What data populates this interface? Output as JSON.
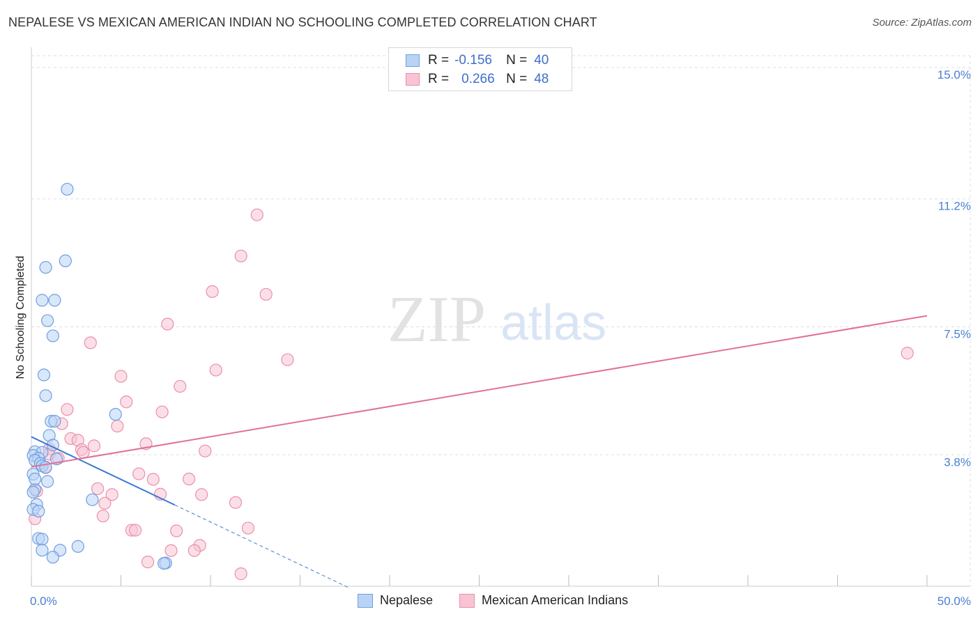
{
  "header": {
    "title": "NEPALESE VS MEXICAN AMERICAN INDIAN NO SCHOOLING COMPLETED CORRELATION CHART",
    "source": "Source: ZipAtlas.com"
  },
  "legend": {
    "r_label": "R =",
    "n_label": "N =",
    "rows": [
      {
        "r": "-0.156",
        "n": "40"
      },
      {
        "r": "0.266",
        "n": "48"
      }
    ]
  },
  "watermark": {
    "zip": "ZIP",
    "atlas": "atlas"
  },
  "colors": {
    "nepalese_fill": "#b9d3f5",
    "nepalese_stroke": "#6f9fe0",
    "nepalese_line": "#3a78d4",
    "mexican_fill": "#f8c4d3",
    "mexican_stroke": "#ea8fab",
    "mexican_line": "#e0709a",
    "tick": "#4a7fd1",
    "grid": "#dddddd"
  },
  "chart_data": {
    "type": "scatter",
    "title": "NEPALESE VS MEXICAN AMERICAN INDIAN NO SCHOOLING COMPLETED CORRELATION CHART",
    "xlabel": "",
    "ylabel": "No Schooling Completed",
    "xlim": [
      0,
      50
    ],
    "ylim": [
      0,
      15
    ],
    "x_tick_labels": [
      "0.0%",
      "50.0%"
    ],
    "y_ticks": [
      {
        "value": 3.8,
        "label": "3.8%"
      },
      {
        "value": 7.5,
        "label": "7.5%"
      },
      {
        "value": 11.2,
        "label": "11.2%"
      },
      {
        "value": 15.0,
        "label": "15.0%"
      }
    ],
    "grid": true,
    "legend_position": "bottom",
    "series": [
      {
        "name": "Nepalese",
        "r": -0.156,
        "n": 40,
        "trend": {
          "x0": 0,
          "y0": 4.32,
          "x1": 8,
          "y1": 2.35,
          "dashed_to_x": 17.7
        },
        "points": [
          {
            "x": 2.0,
            "y": 11.48
          },
          {
            "x": 1.9,
            "y": 9.41
          },
          {
            "x": 0.8,
            "y": 9.22
          },
          {
            "x": 0.6,
            "y": 8.27
          },
          {
            "x": 1.3,
            "y": 8.27
          },
          {
            "x": 0.9,
            "y": 7.68
          },
          {
            "x": 1.2,
            "y": 7.24
          },
          {
            "x": 0.7,
            "y": 6.11
          },
          {
            "x": 0.8,
            "y": 5.51
          },
          {
            "x": 4.7,
            "y": 4.97
          },
          {
            "x": 1.1,
            "y": 4.77
          },
          {
            "x": 1.3,
            "y": 4.77
          },
          {
            "x": 1.0,
            "y": 4.36
          },
          {
            "x": 1.2,
            "y": 4.08
          },
          {
            "x": 0.2,
            "y": 3.89
          },
          {
            "x": 0.6,
            "y": 3.87
          },
          {
            "x": 0.1,
            "y": 3.78
          },
          {
            "x": 0.4,
            "y": 3.7
          },
          {
            "x": 1.4,
            "y": 3.68
          },
          {
            "x": 0.2,
            "y": 3.64
          },
          {
            "x": 0.5,
            "y": 3.55
          },
          {
            "x": 0.6,
            "y": 3.48
          },
          {
            "x": 0.8,
            "y": 3.44
          },
          {
            "x": 0.1,
            "y": 3.24
          },
          {
            "x": 0.9,
            "y": 3.03
          },
          {
            "x": 0.2,
            "y": 2.8
          },
          {
            "x": 0.1,
            "y": 2.72
          },
          {
            "x": 3.4,
            "y": 2.5
          },
          {
            "x": 0.3,
            "y": 2.36
          },
          {
            "x": 0.1,
            "y": 2.22
          },
          {
            "x": 0.4,
            "y": 2.17
          },
          {
            "x": 0.4,
            "y": 1.38
          },
          {
            "x": 0.6,
            "y": 1.36
          },
          {
            "x": 2.6,
            "y": 1.15
          },
          {
            "x": 1.6,
            "y": 1.04
          },
          {
            "x": 0.6,
            "y": 1.04
          },
          {
            "x": 1.2,
            "y": 0.84
          },
          {
            "x": 7.5,
            "y": 0.67
          },
          {
            "x": 7.4,
            "y": 0.66
          },
          {
            "x": 0.2,
            "y": 3.1
          }
        ]
      },
      {
        "name": "Mexican American Indians",
        "r": 0.266,
        "n": 48,
        "trend": {
          "x0": 0,
          "y0": 3.45,
          "x1": 50,
          "y1": 7.82
        },
        "points": [
          {
            "x": 12.6,
            "y": 10.74
          },
          {
            "x": 11.7,
            "y": 9.55
          },
          {
            "x": 10.1,
            "y": 8.52
          },
          {
            "x": 13.1,
            "y": 8.44
          },
          {
            "x": 7.6,
            "y": 7.58
          },
          {
            "x": 3.3,
            "y": 7.04
          },
          {
            "x": 48.9,
            "y": 6.74
          },
          {
            "x": 14.3,
            "y": 6.55
          },
          {
            "x": 10.3,
            "y": 6.25
          },
          {
            "x": 5.0,
            "y": 6.07
          },
          {
            "x": 8.3,
            "y": 5.78
          },
          {
            "x": 5.3,
            "y": 5.33
          },
          {
            "x": 2.0,
            "y": 5.11
          },
          {
            "x": 7.3,
            "y": 5.04
          },
          {
            "x": 1.7,
            "y": 4.7
          },
          {
            "x": 4.8,
            "y": 4.63
          },
          {
            "x": 2.2,
            "y": 4.27
          },
          {
            "x": 2.6,
            "y": 4.22
          },
          {
            "x": 6.4,
            "y": 4.12
          },
          {
            "x": 3.5,
            "y": 4.06
          },
          {
            "x": 1.0,
            "y": 3.97
          },
          {
            "x": 2.8,
            "y": 3.95
          },
          {
            "x": 2.9,
            "y": 3.87
          },
          {
            "x": 9.7,
            "y": 3.91
          },
          {
            "x": 1.0,
            "y": 3.82
          },
          {
            "x": 1.5,
            "y": 3.7
          },
          {
            "x": 0.8,
            "y": 3.43
          },
          {
            "x": 6.0,
            "y": 3.25
          },
          {
            "x": 8.8,
            "y": 3.1
          },
          {
            "x": 6.8,
            "y": 3.09
          },
          {
            "x": 3.7,
            "y": 2.82
          },
          {
            "x": 0.3,
            "y": 2.75
          },
          {
            "x": 4.5,
            "y": 2.65
          },
          {
            "x": 7.2,
            "y": 2.66
          },
          {
            "x": 9.5,
            "y": 2.65
          },
          {
            "x": 4.1,
            "y": 2.4
          },
          {
            "x": 11.4,
            "y": 2.42
          },
          {
            "x": 4.0,
            "y": 2.03
          },
          {
            "x": 0.2,
            "y": 1.95
          },
          {
            "x": 12.1,
            "y": 1.68
          },
          {
            "x": 5.6,
            "y": 1.62
          },
          {
            "x": 5.8,
            "y": 1.62
          },
          {
            "x": 8.1,
            "y": 1.6
          },
          {
            "x": 9.4,
            "y": 1.18
          },
          {
            "x": 9.1,
            "y": 1.03
          },
          {
            "x": 7.8,
            "y": 1.03
          },
          {
            "x": 6.5,
            "y": 0.7
          },
          {
            "x": 11.7,
            "y": 0.36
          }
        ]
      }
    ]
  }
}
